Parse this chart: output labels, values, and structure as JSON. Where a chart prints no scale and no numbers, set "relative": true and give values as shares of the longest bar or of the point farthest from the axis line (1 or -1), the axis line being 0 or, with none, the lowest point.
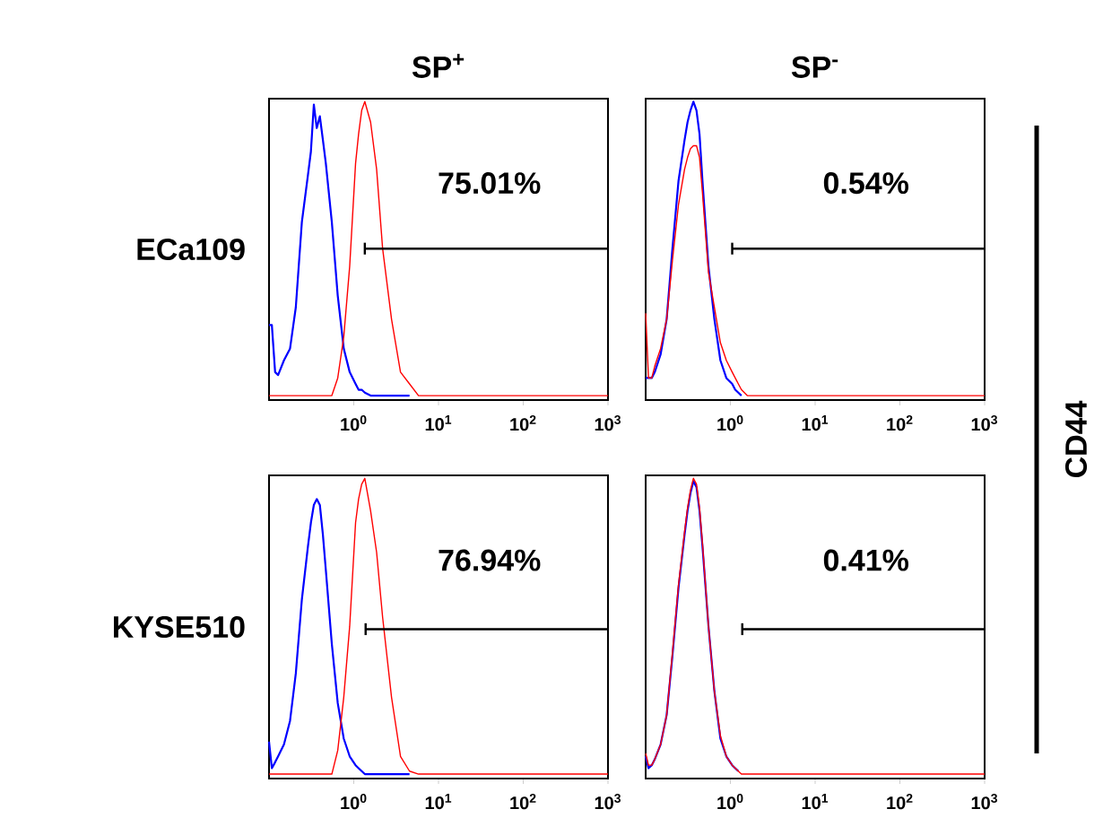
{
  "chart_data": [
    {
      "type": "line",
      "title": "SP$^{+}$",
      "ylabel": "ECa109",
      "relative": true,
      "log": "x",
      "xlim": [
        0.1,
        1000
      ],
      "xticks": [
        {
          "value": 1,
          "label": "10$^{0}$"
        },
        {
          "value": 10,
          "label": "10$^{1}$"
        },
        {
          "value": 100,
          "label": "10$^{2}$"
        },
        {
          "value": 1000,
          "label": "10$^{3}$"
        }
      ],
      "x": [
        0.1,
        0.108,
        0.118,
        0.128,
        0.15,
        0.177,
        0.207,
        0.244,
        0.288,
        0.312,
        0.338,
        0.366,
        0.398,
        0.432,
        0.468,
        0.551,
        0.647,
        0.762,
        0.895,
        1.05,
        1.14,
        1.24,
        1.35,
        1.58,
        1.86,
        2.19,
        2.79,
        3.56,
        4.55,
        5.81,
        8.04,
        1000
      ],
      "series": [
        {
          "color": "#0000ff",
          "values": [
            0.24,
            0.24,
            0.08,
            0.07,
            0.12,
            0.16,
            0.3,
            0.59,
            0.75,
            0.83,
            0.99,
            0.91,
            0.95,
            0.87,
            0.79,
            0.59,
            0.34,
            0.16,
            0.08,
            0.04,
            0.02,
            0.02,
            0.01,
            0,
            0,
            0,
            0,
            0,
            0,
            null,
            null,
            null
          ]
        },
        {
          "color": "#ff0000",
          "values": [
            0,
            0,
            0,
            0,
            0,
            0,
            0,
            0,
            0,
            0,
            0,
            0,
            0,
            0,
            0,
            0,
            0.06,
            0.2,
            0.44,
            0.79,
            0.89,
            0.97,
            1,
            0.93,
            0.77,
            0.5,
            0.26,
            0.08,
            0.04,
            0,
            0,
            0
          ]
        },
        {
          "type": "line",
          "color": "#000000",
          "x": [
            1.35,
            1000
          ],
          "values": [
            0.5,
            0.5
          ]
        },
        {
          "type": "line",
          "color": "#000000",
          "x": [
            1.35,
            1.35
          ],
          "values": [
            0.48,
            0.52
          ]
        }
      ],
      "annotations": [
        "75.01%"
      ]
    },
    {
      "type": "line",
      "title": "SP$^{-}$",
      "y2label": "CD44",
      "relative": true,
      "log": "x",
      "xlim": [
        0.1,
        1000
      ],
      "xticks": [
        {
          "value": 1,
          "label": "10$^{0}$"
        },
        {
          "value": 10,
          "label": "10$^{1}$"
        },
        {
          "value": 100,
          "label": "10$^{2}$"
        },
        {
          "value": 1000,
          "label": "10$^{3}$"
        }
      ],
      "x": [
        0.1,
        0.108,
        0.118,
        0.128,
        0.15,
        0.177,
        0.207,
        0.244,
        0.288,
        0.312,
        0.338,
        0.366,
        0.398,
        0.432,
        0.468,
        0.551,
        0.647,
        0.762,
        0.895,
        1.05,
        1.14,
        1.24,
        1.35,
        1.58,
        1.86,
        2.19,
        2.79,
        3.56,
        4.55,
        5.81,
        8.04,
        1000
      ],
      "series": [
        {
          "color": "#0000ff",
          "values": [
            0.06,
            0.06,
            0.06,
            0.08,
            0.14,
            0.26,
            0.5,
            0.73,
            0.87,
            0.93,
            0.97,
            1,
            0.97,
            0.89,
            0.73,
            0.44,
            0.26,
            0.12,
            0.06,
            0.04,
            0.02,
            0.01,
            0,
            null,
            null,
            null,
            null,
            null,
            null,
            null,
            null,
            null
          ]
        },
        {
          "color": "#ff0000",
          "values": [
            0.28,
            0.06,
            0.06,
            0.1,
            0.16,
            0.26,
            0.46,
            0.65,
            0.77,
            0.81,
            0.84,
            0.85,
            0.85,
            0.81,
            0.69,
            0.42,
            0.3,
            0.18,
            0.12,
            0.08,
            0.06,
            0.04,
            0.02,
            0,
            0,
            0,
            0,
            0,
            0,
            0,
            0,
            0
          ]
        },
        {
          "type": "line",
          "color": "#000000",
          "x": [
            1.05,
            1000
          ],
          "values": [
            0.5,
            0.5
          ]
        },
        {
          "type": "line",
          "color": "#000000",
          "x": [
            1.05,
            1.05
          ],
          "values": [
            0.48,
            0.52
          ]
        }
      ],
      "annotations": [
        "0.54%"
      ]
    },
    {
      "type": "line",
      "ylabel": "KYSE510",
      "relative": true,
      "log": "x",
      "xlim": [
        0.1,
        1000
      ],
      "xticks": [
        {
          "value": 1,
          "label": "10$^{0}$"
        },
        {
          "value": 10,
          "label": "10$^{1}$"
        },
        {
          "value": 100,
          "label": "10$^{2}$"
        },
        {
          "value": 1000,
          "label": "10$^{3}$"
        }
      ],
      "x": [
        0.1,
        0.108,
        0.118,
        0.128,
        0.15,
        0.177,
        0.207,
        0.244,
        0.288,
        0.312,
        0.338,
        0.366,
        0.398,
        0.432,
        0.468,
        0.551,
        0.647,
        0.762,
        0.895,
        1.05,
        1.14,
        1.24,
        1.35,
        1.58,
        1.86,
        2.19,
        2.79,
        3.56,
        4.55,
        5.81,
        8.04,
        1000
      ],
      "series": [
        {
          "color": "#0000ff",
          "values": [
            0.11,
            0.02,
            0.04,
            0.06,
            0.1,
            0.18,
            0.34,
            0.59,
            0.77,
            0.85,
            0.91,
            0.93,
            0.91,
            0.81,
            0.69,
            0.44,
            0.24,
            0.12,
            0.06,
            0.03,
            0.02,
            0.01,
            0,
            0,
            0,
            0,
            0,
            0,
            0,
            null,
            null,
            null
          ]
        },
        {
          "color": "#ff0000",
          "values": [
            0,
            0,
            0,
            0,
            0,
            0,
            0,
            0,
            0,
            0,
            0,
            0,
            0,
            0,
            0,
            0,
            0.08,
            0.26,
            0.5,
            0.85,
            0.93,
            0.98,
            1,
            0.89,
            0.75,
            0.53,
            0.26,
            0.06,
            0.01,
            0,
            0,
            0
          ]
        },
        {
          "type": "line",
          "color": "#000000",
          "x": [
            1.38,
            1000
          ],
          "values": [
            0.49,
            0.49
          ]
        },
        {
          "type": "line",
          "color": "#000000",
          "x": [
            1.38,
            1.38
          ],
          "values": [
            0.47,
            0.51
          ]
        }
      ],
      "annotations": [
        "76.94%"
      ]
    },
    {
      "type": "line",
      "relative": true,
      "log": "x",
      "xlim": [
        0.1,
        1000
      ],
      "xticks": [
        {
          "value": 1,
          "label": "10$^{0}$"
        },
        {
          "value": 10,
          "label": "10$^{1}$"
        },
        {
          "value": 100,
          "label": "10$^{2}$"
        },
        {
          "value": 1000,
          "label": "10$^{3}$"
        }
      ],
      "x": [
        0.1,
        0.108,
        0.118,
        0.128,
        0.15,
        0.177,
        0.207,
        0.244,
        0.288,
        0.312,
        0.338,
        0.366,
        0.398,
        0.432,
        0.468,
        0.551,
        0.647,
        0.762,
        0.895,
        1.05,
        1.14,
        1.24,
        1.35,
        1.58,
        1.86,
        2.19,
        2.79,
        3.56,
        4.55,
        5.81,
        8.04,
        1000
      ],
      "series": [
        {
          "color": "#0000ff",
          "values": [
            0.06,
            0.02,
            0.03,
            0.05,
            0.1,
            0.2,
            0.4,
            0.63,
            0.81,
            0.89,
            0.95,
            0.99,
            0.97,
            0.89,
            0.77,
            0.5,
            0.28,
            0.12,
            0.06,
            0.03,
            0.02,
            0.01,
            null,
            null,
            null,
            null,
            null,
            null,
            null,
            null,
            null,
            null
          ]
        },
        {
          "color": "#ff0000",
          "values": [
            0.07,
            0.03,
            0.03,
            0.05,
            0.1,
            0.2,
            0.41,
            0.64,
            0.82,
            0.9,
            0.96,
            1,
            0.98,
            0.9,
            0.78,
            0.5,
            0.28,
            0.13,
            0.06,
            0.03,
            0.02,
            0.01,
            0,
            0,
            0,
            0,
            0,
            0,
            0,
            0,
            0,
            0
          ]
        },
        {
          "type": "line",
          "color": "#000000",
          "x": [
            1.38,
            1000
          ],
          "values": [
            0.49,
            0.49
          ]
        },
        {
          "type": "line",
          "color": "#000000",
          "x": [
            1.38,
            1.38
          ],
          "values": [
            0.47,
            0.51
          ]
        }
      ],
      "annotations": [
        "0.41%"
      ]
    }
  ]
}
